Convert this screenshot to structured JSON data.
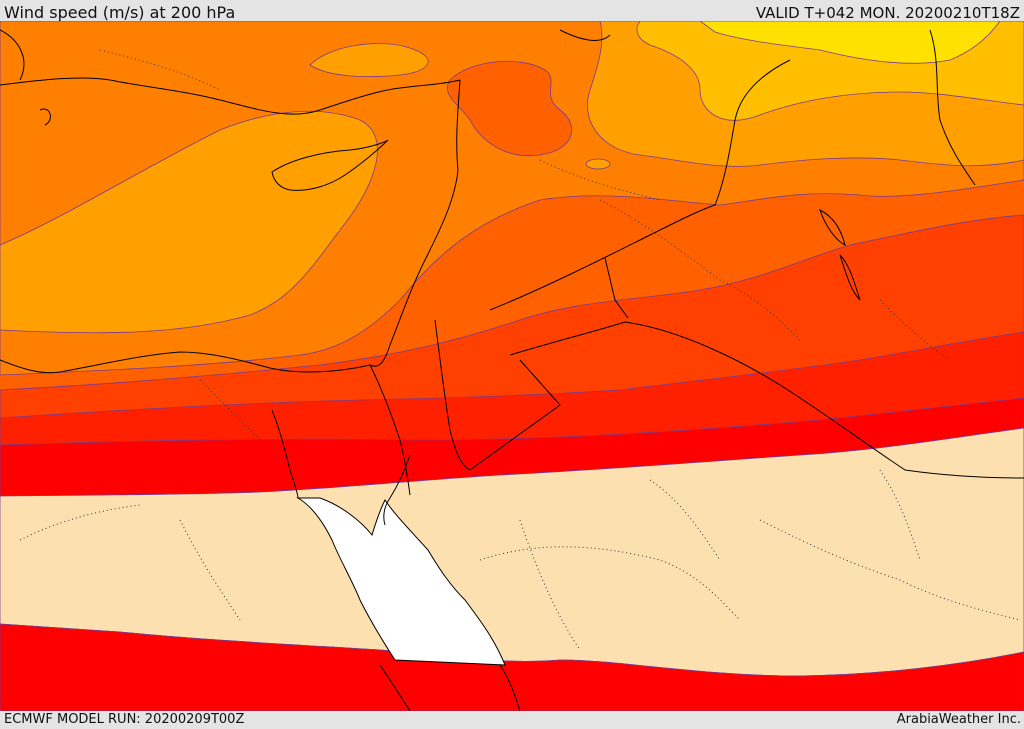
{
  "header": {
    "title": "Wind speed (m/s) at 200 hPa",
    "valid": "VALID T+042 MON. 20200210T18Z"
  },
  "footer": {
    "model_run": "ECMWF MODEL RUN: 20200209T00Z",
    "credit": "ArabiaWeather Inc."
  },
  "colors": {
    "band_yellow": "#ffe100",
    "band_light_orange": "#ffbf00",
    "band_orange": "#ffa000",
    "band_deep_orange": "#ff8000",
    "band_red_orange": "#ff6000",
    "band_orange_red": "#ff4000",
    "band_red_dark": "#ff2000",
    "band_red": "#ff0000",
    "below_threshold": "#fde0b0",
    "sea_masked": "#ffffff",
    "coastline": "#000000",
    "contour": "#7a3a8c"
  }
}
